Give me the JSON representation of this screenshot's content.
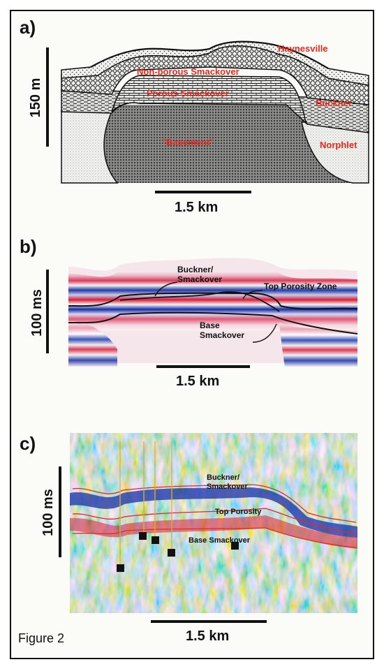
{
  "figure": {
    "caption": "Figure 2"
  },
  "panel_a": {
    "label": "a)",
    "vertical_scale": "150 m",
    "horizontal_scale": "1.5 km",
    "units": {
      "haynesville": "Haynesville",
      "non_porous": "Non-porous Smackover",
      "porous": "Porous Smackover",
      "buckner": "Buckner",
      "basement": "\"Basement\"",
      "norphlet": "Norphlet"
    }
  },
  "panel_b": {
    "label": "b)",
    "vertical_scale": "100 ms",
    "horizontal_scale": "1.5 km",
    "annotations": {
      "buckner_line1": "Buckner/",
      "buckner_line2": "Smackover",
      "top_porosity": "Top Porosity Zone",
      "base_line1": "Base",
      "base_line2": "Smackover"
    }
  },
  "panel_c": {
    "label": "c)",
    "vertical_scale": "100 ms",
    "horizontal_scale": "1.5 km",
    "annotations": {
      "buckner_line1": "Buckner/",
      "buckner_line2": "Smackover",
      "top_porosity": "Top Porosity",
      "base": "Base Smackover"
    }
  },
  "colors": {
    "label_red": "#e8281e",
    "seismic_red": "#d8203a",
    "seismic_blue": "#1a2fa8",
    "frame": "#111111"
  }
}
